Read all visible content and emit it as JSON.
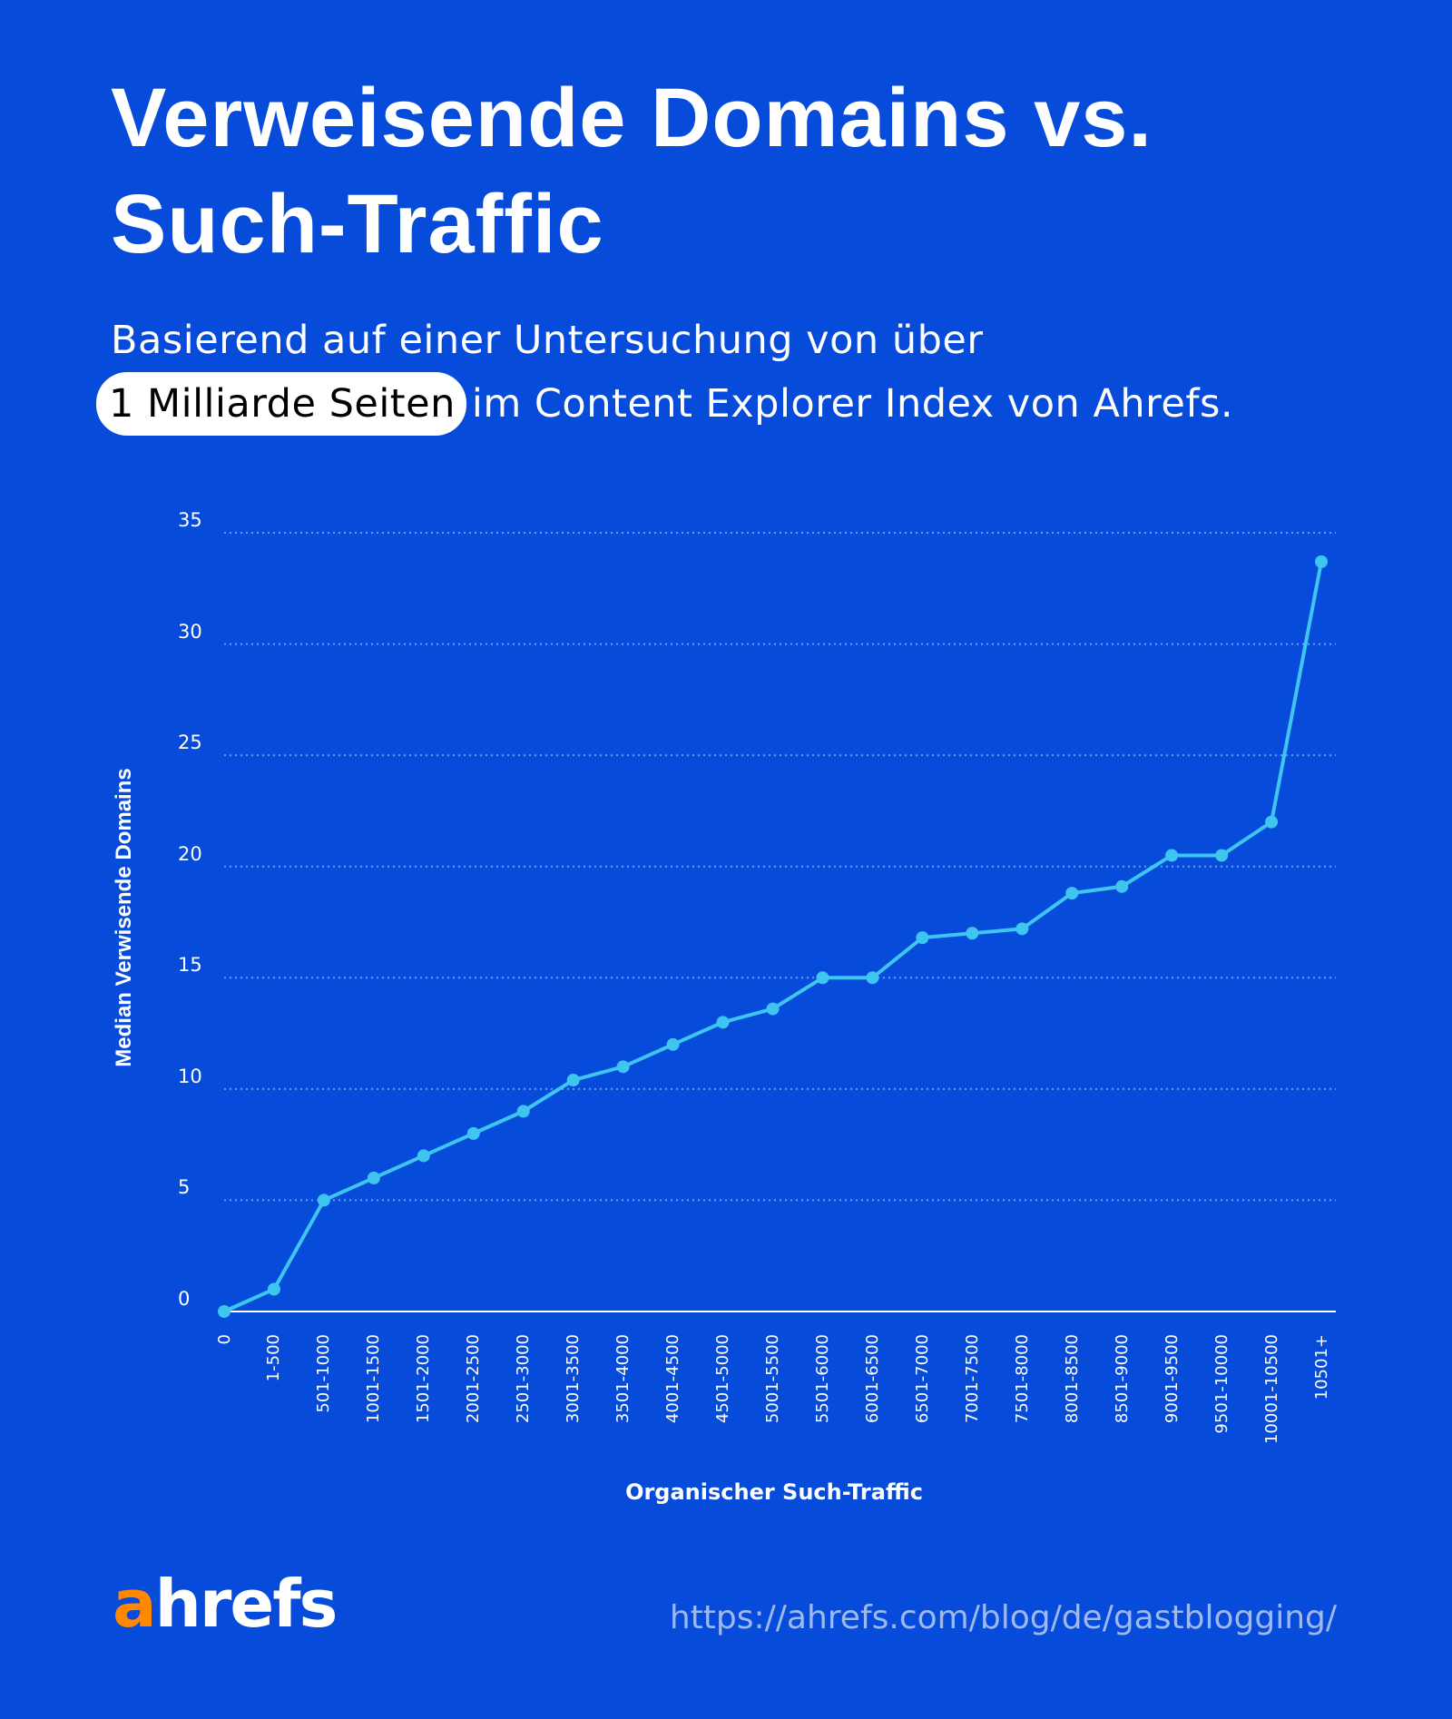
{
  "header": {
    "title_line1": "Verweisende Domains vs.",
    "title_line2": "Such-Traffic",
    "subtitle_line1": "Basierend auf einer Untersuchung von über",
    "subtitle_highlight": "1 Milliarde Seiten",
    "subtitle_line2_rest": "im Content Explorer Index von Ahrefs."
  },
  "footer": {
    "logo_accent": "a",
    "logo_rest": "hrefs",
    "url": "https://ahrefs.com/blog/de/gastblogging/"
  },
  "colors": {
    "background": "#074bdb",
    "line": "#3ec6f0",
    "grid": "#6a9cf0",
    "axis": "#ffffff",
    "logo_accent": "#ff8800",
    "url": "#9db9f0",
    "highlight_bg": "#ffffff"
  },
  "chart_data": {
    "type": "line",
    "title": "Verweisende Domains vs. Such-Traffic",
    "xlabel": "Organischer Such-Traffic",
    "ylabel": "Median Verwisende Domains",
    "ylim": [
      0,
      35
    ],
    "yticks": [
      0,
      5,
      10,
      15,
      20,
      25,
      30,
      35
    ],
    "grid": true,
    "legend": false,
    "categories": [
      "0",
      "1-500",
      "501-1000",
      "1001-1500",
      "1501-2000",
      "2001-2500",
      "2501-3000",
      "3001-3500",
      "3501-4000",
      "4001-4500",
      "4501-5000",
      "5001-5500",
      "5501-6000",
      "6001-6500",
      "6501-7000",
      "7001-7500",
      "7501-8000",
      "8001-8500",
      "8501-9000",
      "9001-9500",
      "9501-10000",
      "10001-10500",
      "10501+"
    ],
    "values": [
      0,
      1,
      5,
      6,
      7,
      8,
      9,
      10.4,
      11,
      12,
      13,
      13.6,
      15,
      15,
      16.8,
      17,
      17.2,
      18.8,
      19.1,
      20.5,
      20.5,
      22,
      33.7
    ]
  }
}
